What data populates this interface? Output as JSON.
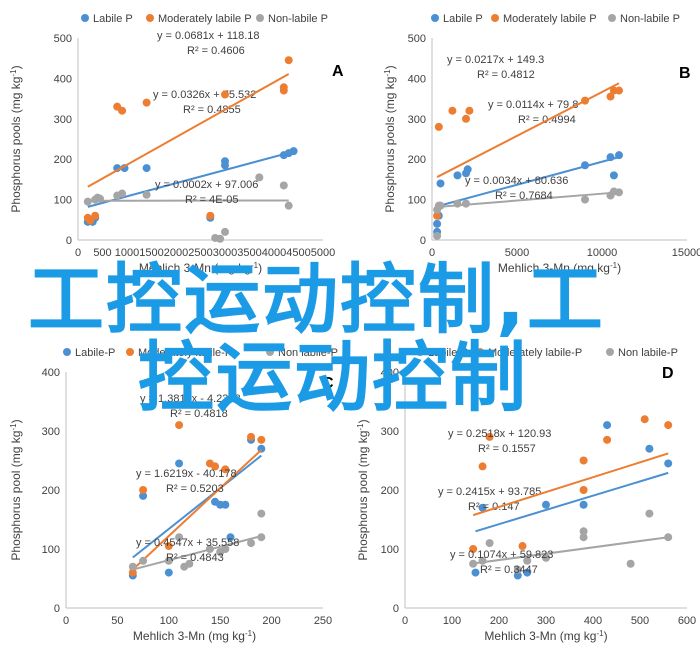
{
  "colors": {
    "labile": "#4a90d2",
    "moderately_labile": "#ed7d31",
    "non_labile": "#a5a5a5",
    "axis": "#bfbfbf",
    "text": "#404040",
    "watermark": "#1b9be6"
  },
  "watermark": {
    "line1": "工控运动控制,工",
    "line2": "控运动控制"
  },
  "chart_data": [
    {
      "id": "A",
      "type": "scatter",
      "panel_label": "A",
      "xlabel": "Mehlich 3-Mn (mg kg-1)",
      "ylabel": "Phosphorus pools (mg kg-1)",
      "xlim": [
        0,
        5000
      ],
      "ylim": [
        0,
        500
      ],
      "xticks": [
        0,
        500,
        1000,
        1500,
        2000,
        2500,
        3000,
        3500,
        4000,
        4500,
        5000
      ],
      "yticks": [
        0,
        100,
        200,
        300,
        400,
        500
      ],
      "legend": [
        "Labile P",
        "Moderately labile P",
        "Non-labile P"
      ],
      "series": [
        {
          "name": "Labile P",
          "color_key": "labile",
          "trendline": {
            "slope": 0.0326,
            "intercept": 75.532,
            "equation": "y = 0.0326x + 75.532",
            "r2": "R² = 0.4855"
          },
          "points": [
            [
              200,
              45
            ],
            [
              300,
              45
            ],
            [
              350,
              55
            ],
            [
              800,
              178
            ],
            [
              950,
              178
            ],
            [
              1400,
              178
            ],
            [
              3000,
              185
            ],
            [
              3000,
              195
            ],
            [
              4200,
              210
            ],
            [
              4300,
              215
            ],
            [
              4400,
              220
            ],
            [
              2700,
              55
            ]
          ]
        },
        {
          "name": "Moderately labile P",
          "color_key": "moderately_labile",
          "trendline": {
            "slope": 0.0681,
            "intercept": 118.18,
            "equation": "y = 0.0681x + 118.18",
            "r2": "R² = 0.4606"
          },
          "points": [
            [
              200,
              55
            ],
            [
              250,
              48
            ],
            [
              350,
              60
            ],
            [
              800,
              330
            ],
            [
              900,
              320
            ],
            [
              1400,
              340
            ],
            [
              2700,
              60
            ],
            [
              3000,
              360
            ],
            [
              4200,
              370
            ],
            [
              4200,
              378
            ],
            [
              4300,
              445
            ]
          ]
        },
        {
          "name": "Non-labile P",
          "color_key": "non_labile",
          "trendline": {
            "slope": 0.0002,
            "intercept": 97.006,
            "equation": "y = 0.0002x + 97.006",
            "r2": "R² = 4E-05"
          },
          "points": [
            [
              200,
              95
            ],
            [
              350,
              100
            ],
            [
              400,
              105
            ],
            [
              450,
              102
            ],
            [
              800,
              110
            ],
            [
              900,
              115
            ],
            [
              1400,
              112
            ],
            [
              2800,
              5
            ],
            [
              2900,
              3
            ],
            [
              3000,
              20
            ],
            [
              3700,
              155
            ],
            [
              4200,
              135
            ],
            [
              4300,
              85
            ]
          ]
        }
      ],
      "annotation_positions": "inline"
    },
    {
      "id": "B",
      "type": "scatter",
      "panel_label": "B",
      "xlabel": "Mehlich 3-Mn (mg kg-1)",
      "ylabel": "Phosphorus pools (mg kg-1)",
      "xlim": [
        0,
        15000
      ],
      "ylim": [
        0,
        500
      ],
      "xticks": [
        0,
        5000,
        10000,
        15000
      ],
      "yticks": [
        0,
        100,
        200,
        300,
        400,
        500
      ],
      "legend": [
        "Labile P",
        "Moderately labile P",
        "Non-labile P"
      ],
      "series": [
        {
          "name": "Labile P",
          "color_key": "labile",
          "trendline": {
            "slope": 0.0114,
            "intercept": 79.8,
            "equation": "y = 0.0114x + 79.8",
            "r2": "R² = 0.4994"
          },
          "points": [
            [
              300,
              20
            ],
            [
              300,
              40
            ],
            [
              400,
              60
            ],
            [
              500,
              140
            ],
            [
              1500,
              160
            ],
            [
              2000,
              165
            ],
            [
              2100,
              175
            ],
            [
              9000,
              185
            ],
            [
              10500,
              205
            ],
            [
              10700,
              160
            ],
            [
              11000,
              210
            ]
          ]
        },
        {
          "name": "Moderately labile P",
          "color_key": "moderately_labile",
          "trendline": {
            "slope": 0.0217,
            "intercept": 149.3,
            "equation": "y = 0.0217x + 149.3",
            "r2": "R² = 0.4812"
          },
          "points": [
            [
              300,
              60
            ],
            [
              400,
              280
            ],
            [
              1200,
              320
            ],
            [
              2000,
              300
            ],
            [
              2200,
              320
            ],
            [
              9000,
              345
            ],
            [
              10500,
              355
            ],
            [
              10700,
              370
            ],
            [
              11000,
              370
            ]
          ]
        },
        {
          "name": "Non-labile P",
          "color_key": "non_labile",
          "trendline": {
            "slope": 0.0034,
            "intercept": 80.636,
            "equation": "y = 0.0034x + 80.636",
            "r2": "R² = 0.7684"
          },
          "points": [
            [
              300,
              10
            ],
            [
              300,
              75
            ],
            [
              400,
              85
            ],
            [
              500,
              85
            ],
            [
              1500,
              90
            ],
            [
              2000,
              90
            ],
            [
              9000,
              100
            ],
            [
              10500,
              110
            ],
            [
              10700,
              120
            ],
            [
              11000,
              118
            ]
          ]
        }
      ]
    },
    {
      "id": "C",
      "type": "scatter",
      "panel_label": "C",
      "xlabel": "Mehlich 3-Mn (mg kg-1)",
      "ylabel": "Phosphorus pool (mg kg-1)",
      "xlim": [
        0,
        250
      ],
      "ylim": [
        0,
        400
      ],
      "xticks": [
        0,
        50,
        100,
        150,
        200,
        250
      ],
      "yticks": [
        0,
        100,
        200,
        300,
        400
      ],
      "legend": [
        "Labile-P",
        "Moderately labile-P",
        "Non labile-P"
      ],
      "series": [
        {
          "name": "Labile-P",
          "color_key": "labile",
          "trendline": {
            "slope": 1.3819,
            "intercept": -4.2368,
            "equation": "y = 1.3819x - 4.2368",
            "r2": "R² = 0.4818"
          },
          "points": [
            [
              65,
              55
            ],
            [
              75,
              190
            ],
            [
              100,
              60
            ],
            [
              110,
              245
            ],
            [
              145,
              180
            ],
            [
              150,
              175
            ],
            [
              155,
              175
            ],
            [
              160,
              120
            ],
            [
              180,
              285
            ],
            [
              190,
              270
            ]
          ]
        },
        {
          "name": "Moderately labile-P",
          "color_key": "moderately_labile",
          "trendline": {
            "slope": 1.6219,
            "intercept": -40.178,
            "equation": "y = 1.6219x - 40.178",
            "r2": "R² = 0.5203"
          },
          "points": [
            [
              65,
              60
            ],
            [
              75,
              200
            ],
            [
              100,
              105
            ],
            [
              110,
              310
            ],
            [
              140,
              245
            ],
            [
              145,
              240
            ],
            [
              155,
              235
            ],
            [
              180,
              290
            ],
            [
              190,
              285
            ]
          ]
        },
        {
          "name": "Non labile-P",
          "color_key": "non_labile",
          "trendline": {
            "slope": 0.4547,
            "intercept": 35.558,
            "equation": "y = 0.4547x + 35.558",
            "r2": "R² = 0.4843"
          },
          "points": [
            [
              65,
              70
            ],
            [
              75,
              80
            ],
            [
              100,
              80
            ],
            [
              110,
              120
            ],
            [
              115,
              70
            ],
            [
              120,
              75
            ],
            [
              140,
              100
            ],
            [
              150,
              95
            ],
            [
              155,
              100
            ],
            [
              180,
              110
            ],
            [
              190,
              160
            ],
            [
              190,
              120
            ]
          ]
        }
      ]
    },
    {
      "id": "D",
      "type": "scatter",
      "panel_label": "D",
      "xlabel": "Mehlich 3-Mn (mg kg-1)",
      "ylabel": "Phosphorus pool (mg kg-1)",
      "xlim": [
        0,
        600
      ],
      "ylim": [
        0,
        400
      ],
      "xticks": [
        0,
        100,
        200,
        300,
        400,
        500,
        600
      ],
      "yticks": [
        0,
        100,
        200,
        300,
        400
      ],
      "legend": [
        "Labile-P",
        "Moderately labile-P",
        "Non labile-P"
      ],
      "series": [
        {
          "name": "Labile-P",
          "color_key": "labile",
          "trendline": {
            "slope": 0.2415,
            "intercept": 93.785,
            "equation": "y = 0.2415x + 93.785",
            "r2": "R² = 0.147"
          },
          "points": [
            [
              150,
              60
            ],
            [
              165,
              170
            ],
            [
              240,
              55
            ],
            [
              260,
              60
            ],
            [
              300,
              175
            ],
            [
              380,
              175
            ],
            [
              430,
              310
            ],
            [
              520,
              270
            ],
            [
              560,
              245
            ]
          ]
        },
        {
          "name": "Moderately labile-P",
          "color_key": "moderately_labile",
          "trendline": {
            "slope": 0.2518,
            "intercept": 120.93,
            "equation": "y = 0.2518x + 120.93",
            "r2": "R² = 0.1557"
          },
          "points": [
            [
              145,
              100
            ],
            [
              165,
              240
            ],
            [
              180,
              290
            ],
            [
              250,
              105
            ],
            [
              380,
              250
            ],
            [
              380,
              200
            ],
            [
              430,
              285
            ],
            [
              510,
              320
            ],
            [
              560,
              310
            ]
          ]
        },
        {
          "name": "Non labile-P",
          "color_key": "non_labile",
          "trendline": {
            "slope": 0.1074,
            "intercept": 59.823,
            "equation": "y = 0.1074x + 59.823",
            "r2": "R² = 0.3447"
          },
          "points": [
            [
              145,
              75
            ],
            [
              165,
              80
            ],
            [
              180,
              110
            ],
            [
              240,
              65
            ],
            [
              260,
              80
            ],
            [
              300,
              85
            ],
            [
              380,
              120
            ],
            [
              380,
              130
            ],
            [
              480,
              75
            ],
            [
              520,
              160
            ],
            [
              560,
              120
            ]
          ]
        }
      ]
    }
  ]
}
